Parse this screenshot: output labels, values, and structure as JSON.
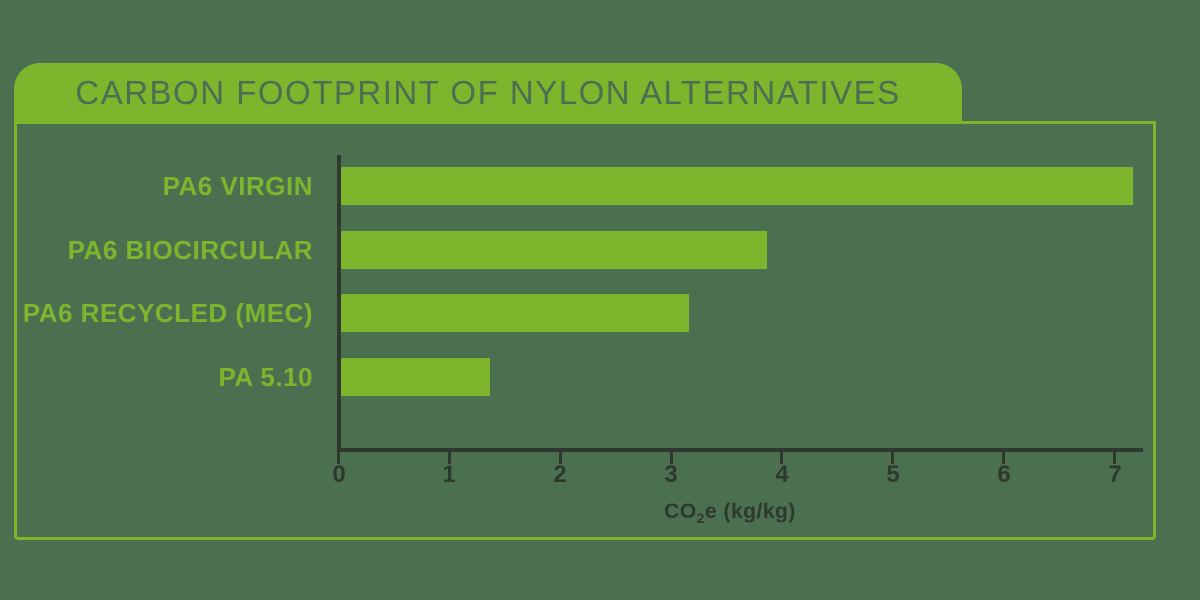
{
  "title": "CARBON FOOTPRINT OF NYLON ALTERNATIVES",
  "colors": {
    "background": "#4a7050",
    "accent_green": "#7db52d",
    "title_text": "#4c6e52",
    "axis": "#2f382d"
  },
  "chart_data": {
    "type": "bar",
    "orientation": "horizontal",
    "title": "CARBON FOOTPRINT OF NYLON ALTERNATIVES",
    "categories": [
      "PA6 VIRGIN",
      "PA6 BIOCIRCULAR",
      "PA6 RECYCLED (MEC)",
      "PA 5.10"
    ],
    "values": [
      7.15,
      3.85,
      3.15,
      1.35
    ],
    "xlabel": "CO₂e (kg/kg)",
    "xlabel_parts": {
      "pre": "CO",
      "sub": "2",
      "post": "e (kg/kg)"
    },
    "xlim": [
      0,
      7
    ],
    "x_ticks": [
      "0",
      "1",
      "2",
      "3",
      "4",
      "5",
      "6",
      "7"
    ],
    "grid": false,
    "legend": "none",
    "bar_color": "#7db52d",
    "unit": "kg CO2e per kg"
  }
}
